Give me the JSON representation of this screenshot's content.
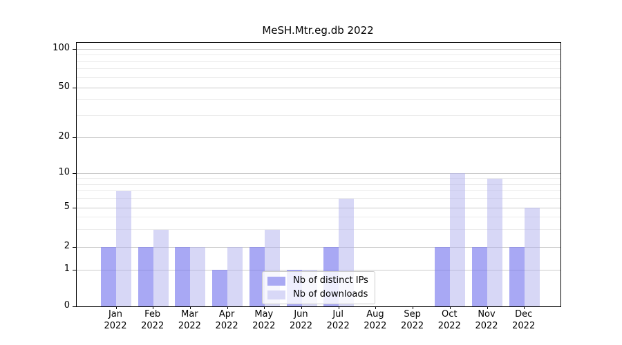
{
  "title": "MeSH.Mtr.eg.db 2022",
  "legend": {
    "items": [
      {
        "label": "Nb of distinct IPs",
        "color": "#a9a9f3"
      },
      {
        "label": "Nb of downloads",
        "color": "#d8d8f7"
      }
    ]
  },
  "chart_data": {
    "type": "bar",
    "title": "MeSH.Mtr.eg.db 2022",
    "categories": [
      "Jan 2022",
      "Feb 2022",
      "Mar 2022",
      "Apr 2022",
      "May 2022",
      "Jun 2022",
      "Jul 2022",
      "Aug 2022",
      "Sep 2022",
      "Oct 2022",
      "Nov 2022",
      "Dec 2022"
    ],
    "series": [
      {
        "name": "Nb of distinct IPs",
        "fill": "rgba(121,121,238,0.65)",
        "swatch": "#a9a9f3",
        "values": [
          2,
          2,
          2,
          1,
          2,
          1,
          2,
          0,
          0,
          2,
          2,
          2
        ]
      },
      {
        "name": "Nb of downloads",
        "fill": "rgba(176,176,238,0.5)",
        "swatch": "#d8d8f7",
        "values": [
          7,
          3,
          2,
          2,
          3,
          1,
          6,
          0,
          0,
          10,
          9,
          5
        ]
      }
    ],
    "xlabel": "",
    "ylabel": "",
    "yscale": "log-like (linear 0-1, log above)",
    "ylim": [
      0,
      112
    ],
    "y_major_ticks": [
      0,
      1,
      2,
      5,
      10,
      20,
      50,
      100
    ],
    "y_minor_ticks": [
      3,
      4,
      6,
      7,
      8,
      9,
      30,
      40,
      60,
      70,
      80,
      90
    ],
    "grid": "horizontal major+minor",
    "legend_position": "lower center"
  }
}
